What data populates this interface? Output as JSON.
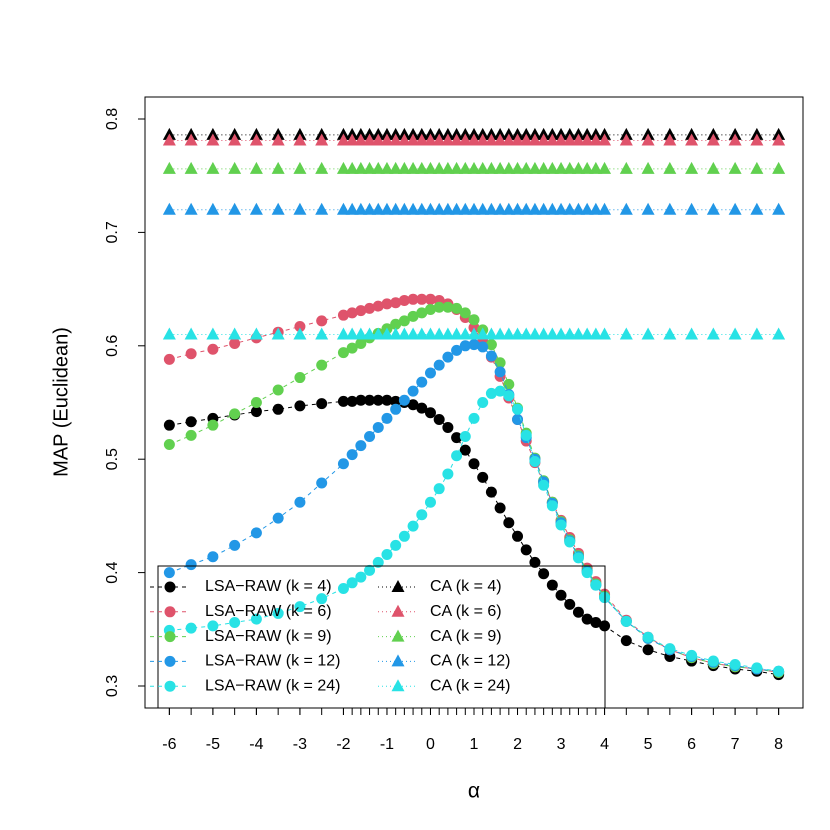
{
  "chart_data": {
    "type": "line",
    "x": [
      -6,
      -5.5,
      -5,
      -4.5,
      -4,
      -3.5,
      -3,
      -2.5,
      -2,
      -1.8,
      -1.6,
      -1.4,
      -1.2,
      -1,
      -0.8,
      -0.6,
      -0.4,
      -0.2,
      0,
      0.2,
      0.4,
      0.6,
      0.8,
      1,
      1.2,
      1.4,
      1.6,
      1.8,
      2,
      2.2,
      2.4,
      2.6,
      2.8,
      3,
      3.2,
      3.4,
      3.6,
      3.8,
      4,
      4.5,
      5,
      5.5,
      6,
      6.5,
      7,
      7.5,
      8
    ],
    "xlabel": "α",
    "ylabel": "MAP (Euclidean)",
    "xlim": [
      -6.56,
      8.56
    ],
    "ylim": [
      0.2806,
      0.8194
    ],
    "xticks": [
      -6,
      -5,
      -4,
      -3,
      -2,
      -1,
      0,
      1,
      2,
      3,
      4,
      5,
      6,
      7,
      8
    ],
    "yticks": [
      0.3,
      0.4,
      0.5,
      0.6,
      0.7,
      0.8
    ],
    "series": [
      {
        "name": "LSA−RAW (k = 4)",
        "color": "#000000",
        "marker": "circle",
        "linestyle": "dashed",
        "values": [
          0.53,
          0.533,
          0.536,
          0.539,
          0.542,
          0.544,
          0.547,
          0.549,
          0.551,
          0.551,
          0.552,
          0.552,
          0.552,
          0.552,
          0.551,
          0.55,
          0.548,
          0.545,
          0.541,
          0.535,
          0.528,
          0.519,
          0.508,
          0.496,
          0.484,
          0.471,
          0.457,
          0.444,
          0.432,
          0.42,
          0.409,
          0.399,
          0.389,
          0.38,
          0.372,
          0.365,
          0.359,
          0.356,
          0.353,
          0.34,
          0.332,
          0.326,
          0.322,
          0.318,
          0.315,
          0.313,
          0.31
        ]
      },
      {
        "name": "LSA−RAW (k = 6)",
        "color": "#DF536B",
        "marker": "circle",
        "linestyle": "dashed",
        "values": [
          0.588,
          0.593,
          0.597,
          0.602,
          0.607,
          0.612,
          0.617,
          0.622,
          0.627,
          0.629,
          0.631,
          0.633,
          0.635,
          0.637,
          0.638,
          0.64,
          0.641,
          0.641,
          0.641,
          0.64,
          0.637,
          0.632,
          0.625,
          0.616,
          0.604,
          0.59,
          0.573,
          0.554,
          0.535,
          0.516,
          0.497,
          0.479,
          0.462,
          0.446,
          0.431,
          0.417,
          0.404,
          0.392,
          0.381,
          0.358,
          0.343,
          0.332,
          0.325,
          0.32,
          0.317,
          0.315,
          0.312
        ]
      },
      {
        "name": "LSA−RAW (k = 9)",
        "color": "#61D04F",
        "marker": "circle",
        "linestyle": "dashed",
        "values": [
          0.513,
          0.521,
          0.53,
          0.54,
          0.55,
          0.561,
          0.572,
          0.583,
          0.594,
          0.598,
          0.602,
          0.607,
          0.611,
          0.615,
          0.619,
          0.622,
          0.626,
          0.629,
          0.632,
          0.634,
          0.634,
          0.633,
          0.629,
          0.623,
          0.614,
          0.601,
          0.585,
          0.566,
          0.545,
          0.523,
          0.501,
          0.481,
          0.462,
          0.445,
          0.429,
          0.415,
          0.402,
          0.39,
          0.379,
          0.357,
          0.342,
          0.332,
          0.325,
          0.32,
          0.317,
          0.315,
          0.312
        ]
      },
      {
        "name": "LSA−RAW (k = 12)",
        "color": "#2297E6",
        "marker": "circle",
        "linestyle": "dashed",
        "values": [
          0.4,
          0.407,
          0.414,
          0.424,
          0.435,
          0.448,
          0.462,
          0.479,
          0.496,
          0.504,
          0.512,
          0.52,
          0.528,
          0.536,
          0.544,
          0.552,
          0.56,
          0.568,
          0.576,
          0.583,
          0.59,
          0.596,
          0.6,
          0.601,
          0.599,
          0.591,
          0.577,
          0.557,
          0.535,
          0.519,
          0.5,
          0.48,
          0.461,
          0.444,
          0.428,
          0.414,
          0.401,
          0.389,
          0.378,
          0.357,
          0.342,
          0.332,
          0.326,
          0.321,
          0.318,
          0.315,
          0.313
        ]
      },
      {
        "name": "LSA−RAW (k = 24)",
        "color": "#28E2E5",
        "marker": "circle",
        "linestyle": "dashed",
        "values": [
          0.349,
          0.351,
          0.353,
          0.356,
          0.359,
          0.364,
          0.37,
          0.377,
          0.386,
          0.391,
          0.396,
          0.402,
          0.409,
          0.416,
          0.424,
          0.432,
          0.441,
          0.451,
          0.462,
          0.474,
          0.487,
          0.503,
          0.52,
          0.536,
          0.55,
          0.558,
          0.56,
          0.556,
          0.544,
          0.521,
          0.498,
          0.477,
          0.459,
          0.442,
          0.427,
          0.413,
          0.4,
          0.389,
          0.378,
          0.357,
          0.343,
          0.333,
          0.327,
          0.322,
          0.319,
          0.316,
          0.313
        ]
      },
      {
        "name": "CA (k = 4)",
        "color": "#000000",
        "marker": "triangle",
        "linestyle": "dotted",
        "values": [
          0.786,
          0.786,
          0.786,
          0.786,
          0.786,
          0.786,
          0.786,
          0.786,
          0.786,
          0.786,
          0.786,
          0.786,
          0.786,
          0.786,
          0.786,
          0.786,
          0.786,
          0.786,
          0.786,
          0.786,
          0.786,
          0.786,
          0.786,
          0.786,
          0.786,
          0.786,
          0.786,
          0.786,
          0.786,
          0.786,
          0.786,
          0.786,
          0.786,
          0.786,
          0.786,
          0.786,
          0.786,
          0.786,
          0.786,
          0.786,
          0.786,
          0.786,
          0.786,
          0.786,
          0.786,
          0.786,
          0.786
        ]
      },
      {
        "name": "CA (k = 6)",
        "color": "#DF536B",
        "marker": "triangle",
        "linestyle": "dotted",
        "values": [
          0.781,
          0.781,
          0.781,
          0.781,
          0.781,
          0.781,
          0.781,
          0.781,
          0.781,
          0.781,
          0.781,
          0.781,
          0.781,
          0.781,
          0.781,
          0.781,
          0.781,
          0.781,
          0.781,
          0.781,
          0.781,
          0.781,
          0.781,
          0.781,
          0.781,
          0.781,
          0.781,
          0.781,
          0.781,
          0.781,
          0.781,
          0.781,
          0.781,
          0.781,
          0.781,
          0.781,
          0.781,
          0.781,
          0.781,
          0.781,
          0.781,
          0.781,
          0.781,
          0.781,
          0.781,
          0.781,
          0.781
        ]
      },
      {
        "name": "CA (k = 9)",
        "color": "#61D04F",
        "marker": "triangle",
        "linestyle": "dotted",
        "values": [
          0.756,
          0.756,
          0.756,
          0.756,
          0.756,
          0.756,
          0.756,
          0.756,
          0.756,
          0.756,
          0.756,
          0.756,
          0.756,
          0.756,
          0.756,
          0.756,
          0.756,
          0.756,
          0.756,
          0.756,
          0.756,
          0.756,
          0.756,
          0.756,
          0.756,
          0.756,
          0.756,
          0.756,
          0.756,
          0.756,
          0.756,
          0.756,
          0.756,
          0.756,
          0.756,
          0.756,
          0.756,
          0.756,
          0.756,
          0.756,
          0.756,
          0.756,
          0.756,
          0.756,
          0.756,
          0.756,
          0.756
        ]
      },
      {
        "name": "CA (k = 12)",
        "color": "#2297E6",
        "marker": "triangle",
        "linestyle": "dotted",
        "values": [
          0.72,
          0.72,
          0.72,
          0.72,
          0.72,
          0.72,
          0.72,
          0.72,
          0.72,
          0.72,
          0.72,
          0.72,
          0.72,
          0.72,
          0.72,
          0.72,
          0.72,
          0.72,
          0.72,
          0.72,
          0.72,
          0.72,
          0.72,
          0.72,
          0.72,
          0.72,
          0.72,
          0.72,
          0.72,
          0.72,
          0.72,
          0.72,
          0.72,
          0.72,
          0.72,
          0.72,
          0.72,
          0.72,
          0.72,
          0.72,
          0.72,
          0.72,
          0.72,
          0.72,
          0.72,
          0.72,
          0.72
        ]
      },
      {
        "name": "CA (k = 24)",
        "color": "#28E2E5",
        "marker": "triangle",
        "linestyle": "dotted",
        "values": [
          0.61,
          0.61,
          0.61,
          0.61,
          0.61,
          0.61,
          0.61,
          0.61,
          0.61,
          0.61,
          0.61,
          0.61,
          0.61,
          0.61,
          0.61,
          0.61,
          0.61,
          0.61,
          0.61,
          0.61,
          0.61,
          0.61,
          0.61,
          0.61,
          0.61,
          0.61,
          0.61,
          0.61,
          0.61,
          0.61,
          0.61,
          0.61,
          0.61,
          0.61,
          0.61,
          0.61,
          0.61,
          0.61,
          0.61,
          0.61,
          0.61,
          0.61,
          0.61,
          0.61,
          0.61,
          0.61,
          0.61
        ]
      }
    ],
    "legend": "bottom-left"
  }
}
